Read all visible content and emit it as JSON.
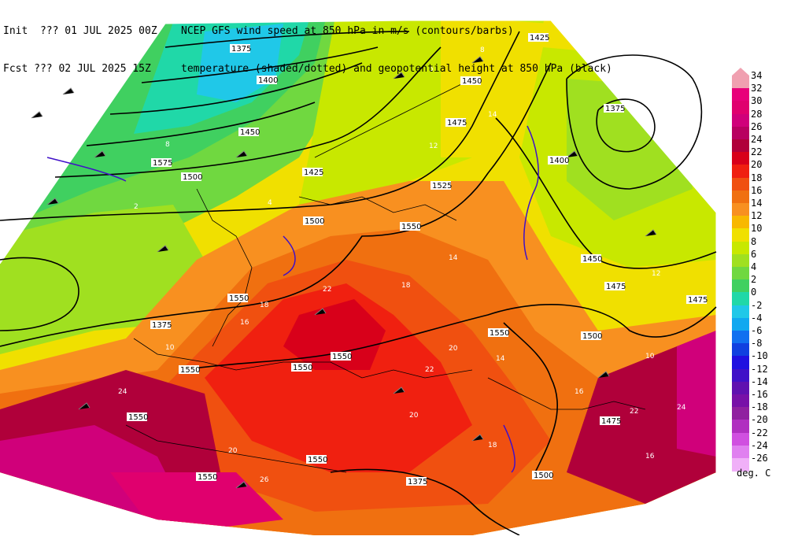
{
  "header": {
    "init_label": "Init  ??? 01 JUL 2025 00Z",
    "fcst_label": "Fcst ??? 02 JUL 2025 15Z",
    "title_line1": "NCEP GFS wind speed at 850 hPa in m/s (contours/barbs)",
    "title_line2": "temperature (shaded/dotted) and geopotential height at 850 hPa (black)"
  },
  "colorbar": {
    "units": "deg. C",
    "levels": [
      "34",
      "32",
      "30",
      "28",
      "26",
      "24",
      "22",
      "20",
      "18",
      "16",
      "14",
      "12",
      "10",
      "8",
      "6",
      "4",
      "2",
      "0",
      "-2",
      "-4",
      "-6",
      "-8",
      "-10",
      "-12",
      "-14",
      "-16",
      "-18",
      "-20",
      "-22",
      "-24",
      "-26"
    ],
    "colors": [
      "#f0a0b0",
      "#e8007a",
      "#e0006e",
      "#d0007a",
      "#b80060",
      "#b0003a",
      "#d8001a",
      "#f02010",
      "#f05010",
      "#f07010",
      "#f89020",
      "#f8b800",
      "#f0e000",
      "#c8e800",
      "#a0e020",
      "#70d840",
      "#40d060",
      "#20d8a8",
      "#20c8e8",
      "#10a8f0",
      "#1070f0",
      "#1040e0",
      "#2010e0",
      "#4010c8",
      "#6010b0",
      "#7810a8",
      "#9020a0",
      "#b030c0",
      "#d050e0",
      "#e080f0",
      "#f0b0f8"
    ]
  },
  "height_labels": [
    "1375",
    "1400",
    "1425",
    "1450",
    "1475",
    "1500",
    "1525",
    "1550",
    "1575",
    "1375",
    "1400",
    "1425",
    "1450",
    "1475",
    "1500",
    "1550",
    "1550",
    "1550",
    "1550",
    "1550",
    "1550",
    "1500",
    "1450",
    "1475",
    "1475",
    "1500",
    "1550",
    "1550",
    "1375",
    "1375"
  ],
  "temp_labels": [
    "8",
    "6",
    "4",
    "2",
    "14",
    "12",
    "16",
    "18",
    "20",
    "22",
    "24",
    "10",
    "12",
    "8",
    "10",
    "14",
    "16",
    "18",
    "20",
    "22",
    "24",
    "26",
    "14",
    "16",
    "18",
    "20",
    "22"
  ]
}
